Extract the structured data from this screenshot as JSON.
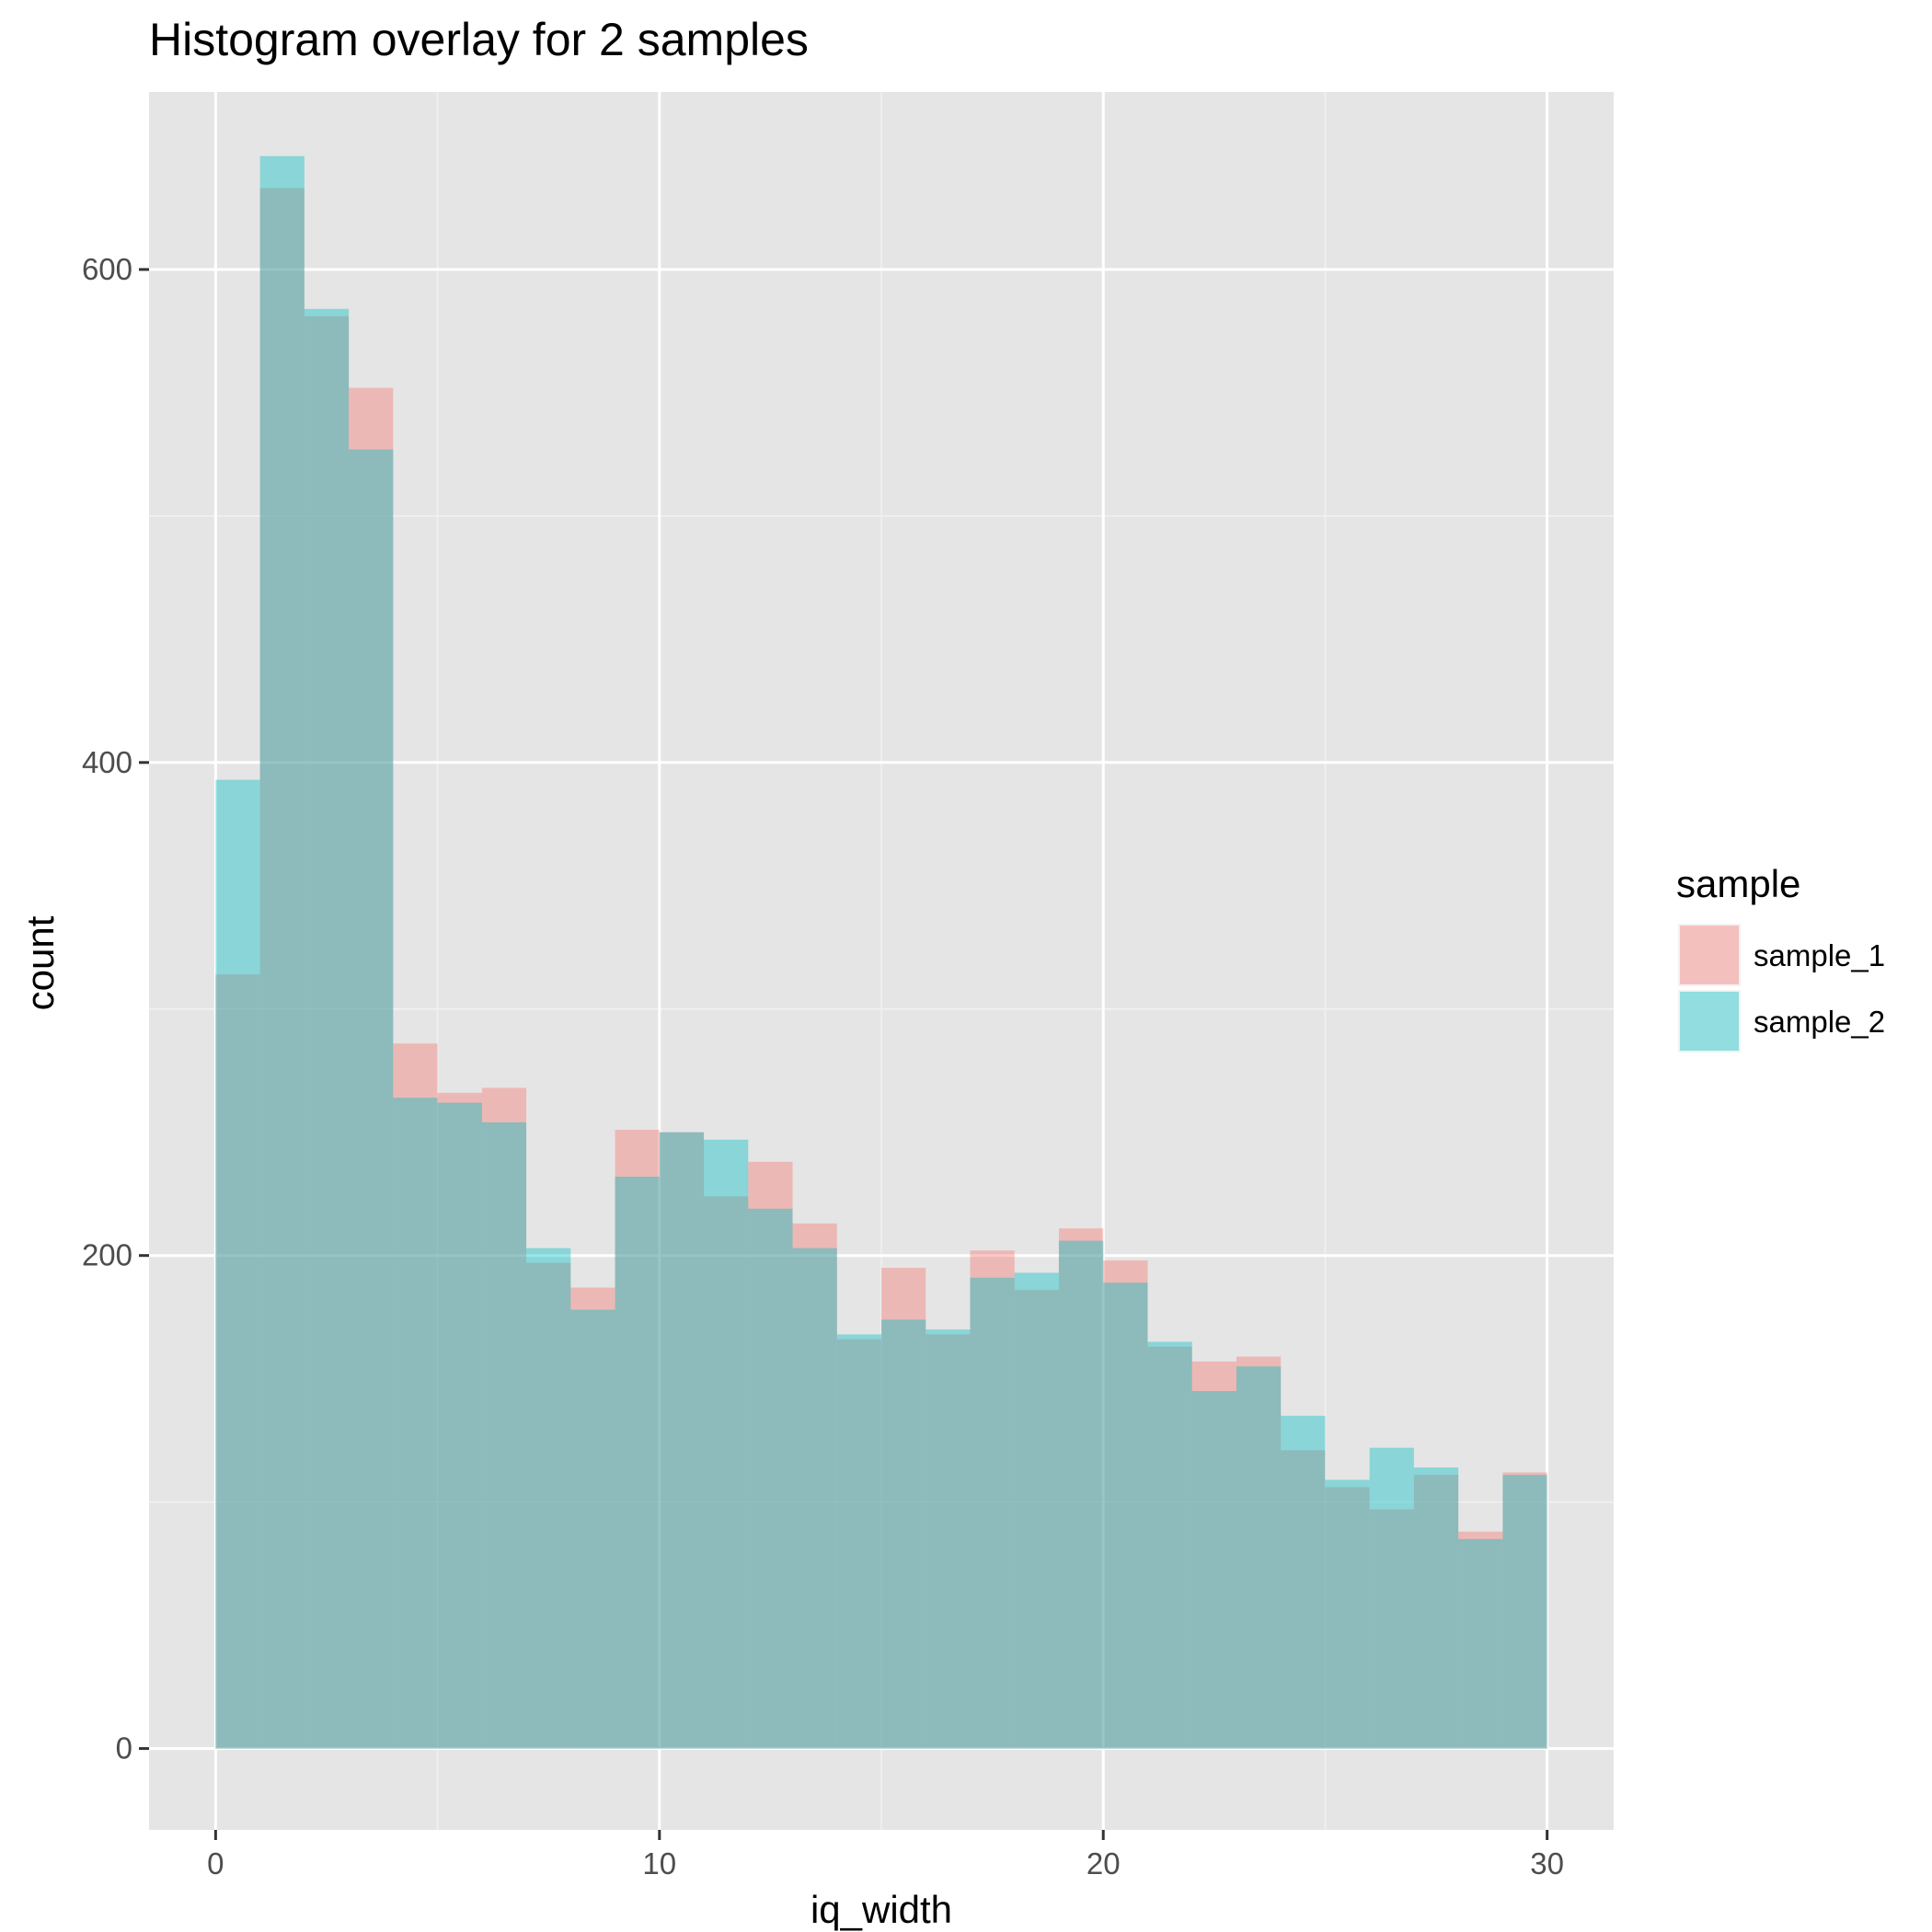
{
  "chart_data": {
    "type": "bar",
    "title": "Histogram overlay for 2 samples",
    "xlabel": "iq_width",
    "ylabel": "count",
    "xlim": [
      -1.5,
      31.5
    ],
    "ylim": [
      -33,
      672
    ],
    "x_ticks": [
      0,
      10,
      20,
      30
    ],
    "x_tick_labels": [
      "0",
      "10",
      "20",
      "30"
    ],
    "y_ticks": [
      0,
      200,
      400,
      600
    ],
    "y_tick_labels": [
      "0",
      "200",
      "400",
      "600"
    ],
    "grid": true,
    "legend": {
      "title": "sample",
      "position": "right"
    },
    "bin_edges": [
      0,
      1,
      2,
      3,
      4,
      5,
      6,
      7,
      8,
      9,
      10,
      11,
      12,
      13,
      14,
      15,
      16,
      17,
      18,
      19,
      20,
      21,
      22,
      23,
      24,
      25,
      26,
      27,
      28,
      29,
      30
    ],
    "series": [
      {
        "name": "sample_1",
        "color": "#F8766D",
        "values": [
          314,
          633,
          581,
          552,
          286,
          266,
          268,
          197,
          187,
          251,
          250,
          224,
          238,
          213,
          166,
          195,
          168,
          202,
          186,
          211,
          198,
          163,
          157,
          159,
          121,
          106,
          97,
          111,
          88,
          112
        ]
      },
      {
        "name": "sample_2",
        "color": "#00BFC4",
        "values": [
          393,
          646,
          584,
          527,
          264,
          262,
          254,
          203,
          178,
          232,
          250,
          247,
          219,
          203,
          168,
          174,
          170,
          191,
          193,
          206,
          189,
          165,
          145,
          155,
          135,
          109,
          122,
          114,
          85,
          111
        ]
      }
    ]
  }
}
